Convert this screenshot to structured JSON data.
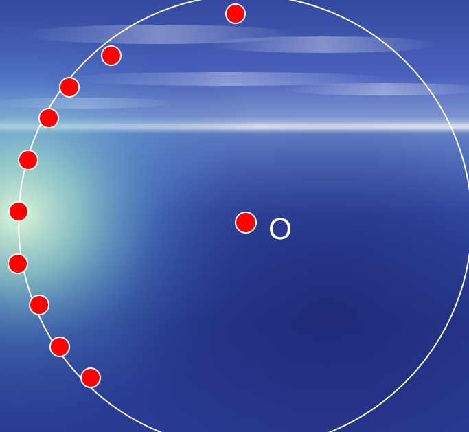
{
  "diagram": {
    "center_label": "O",
    "colors": {
      "sky_top": "#3a4fb8",
      "sky_mid": "#5f77c8",
      "horizon": "#c9d6e6",
      "sea": "#2a3d9a",
      "sea_deep": "#1d2a78",
      "glow": "#d8f5d0",
      "circle_stroke": "#ffffff",
      "point_fill": "#ff0000",
      "point_stroke": "#ffffff"
    },
    "circle_points_count": 10
  }
}
